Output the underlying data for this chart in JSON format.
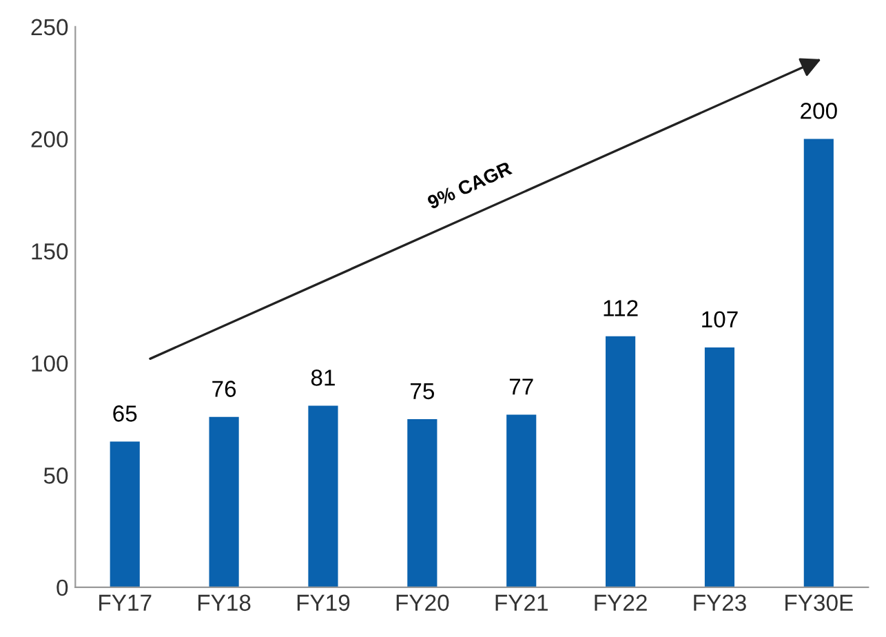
{
  "chart_data": {
    "type": "bar",
    "categories": [
      "FY17",
      "FY18",
      "FY19",
      "FY20",
      "FY21",
      "FY22",
      "FY23",
      "FY30E"
    ],
    "values": [
      65,
      76,
      81,
      75,
      77,
      112,
      107,
      200
    ],
    "color": "#0a62ae",
    "ylim": [
      0,
      250
    ],
    "yticks": [
      0,
      50,
      100,
      150,
      200,
      250
    ],
    "data_labels": true,
    "grid": false,
    "annotations": [
      "9% CAGR"
    ]
  }
}
